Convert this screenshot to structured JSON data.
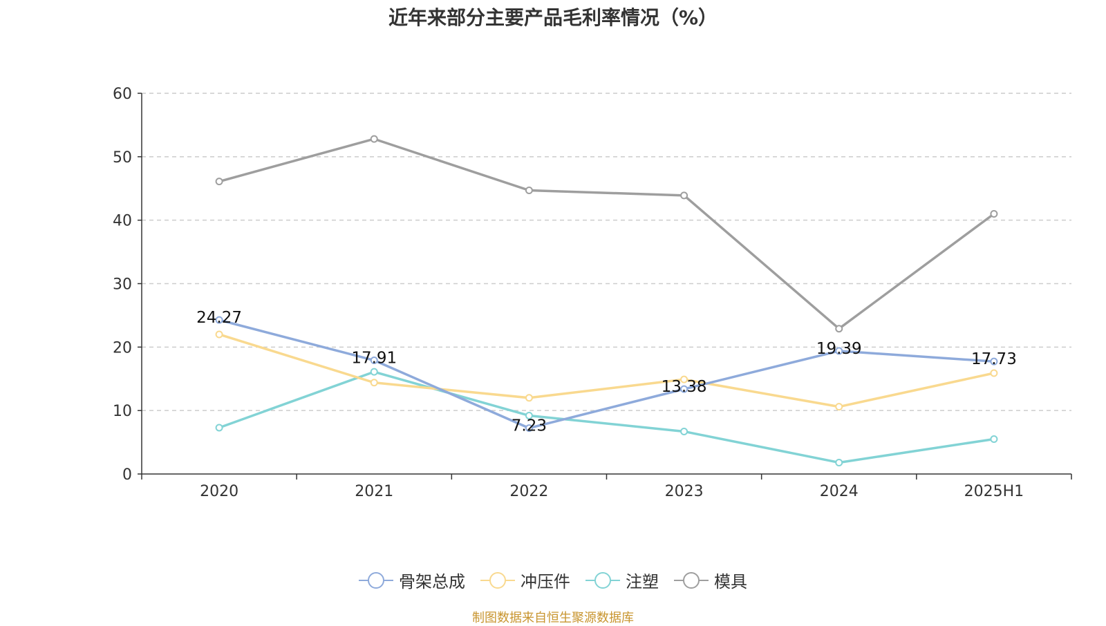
{
  "chart_data": {
    "type": "line",
    "title": "近年来部分主要产品毛利率情况（%）",
    "categories": [
      "2020",
      "2021",
      "2022",
      "2023",
      "2024",
      "2025H1"
    ],
    "ylim": [
      0,
      60
    ],
    "yticks": [
      0,
      10,
      20,
      30,
      40,
      50,
      60
    ],
    "grid": true,
    "legend_position": "bottom",
    "series": [
      {
        "name": "骨架总成",
        "color": "#8eaadb",
        "values": [
          24.27,
          17.91,
          7.23,
          13.38,
          19.39,
          17.73
        ],
        "labels": [
          "24.27",
          "17.91",
          "7.23",
          "13.38",
          "19.39",
          "17.73"
        ]
      },
      {
        "name": "冲压件",
        "color": "#f9d98f",
        "values": [
          22.0,
          14.4,
          12.0,
          14.9,
          10.6,
          15.9
        ]
      },
      {
        "name": "注塑",
        "color": "#82d3d5",
        "values": [
          7.3,
          16.1,
          9.2,
          6.7,
          1.8,
          5.5
        ]
      },
      {
        "name": "模具",
        "color": "#9e9e9e",
        "values": [
          46.1,
          52.8,
          44.7,
          43.9,
          22.9,
          41.0
        ]
      }
    ]
  },
  "source_text": "制图数据来自恒生聚源数据库"
}
